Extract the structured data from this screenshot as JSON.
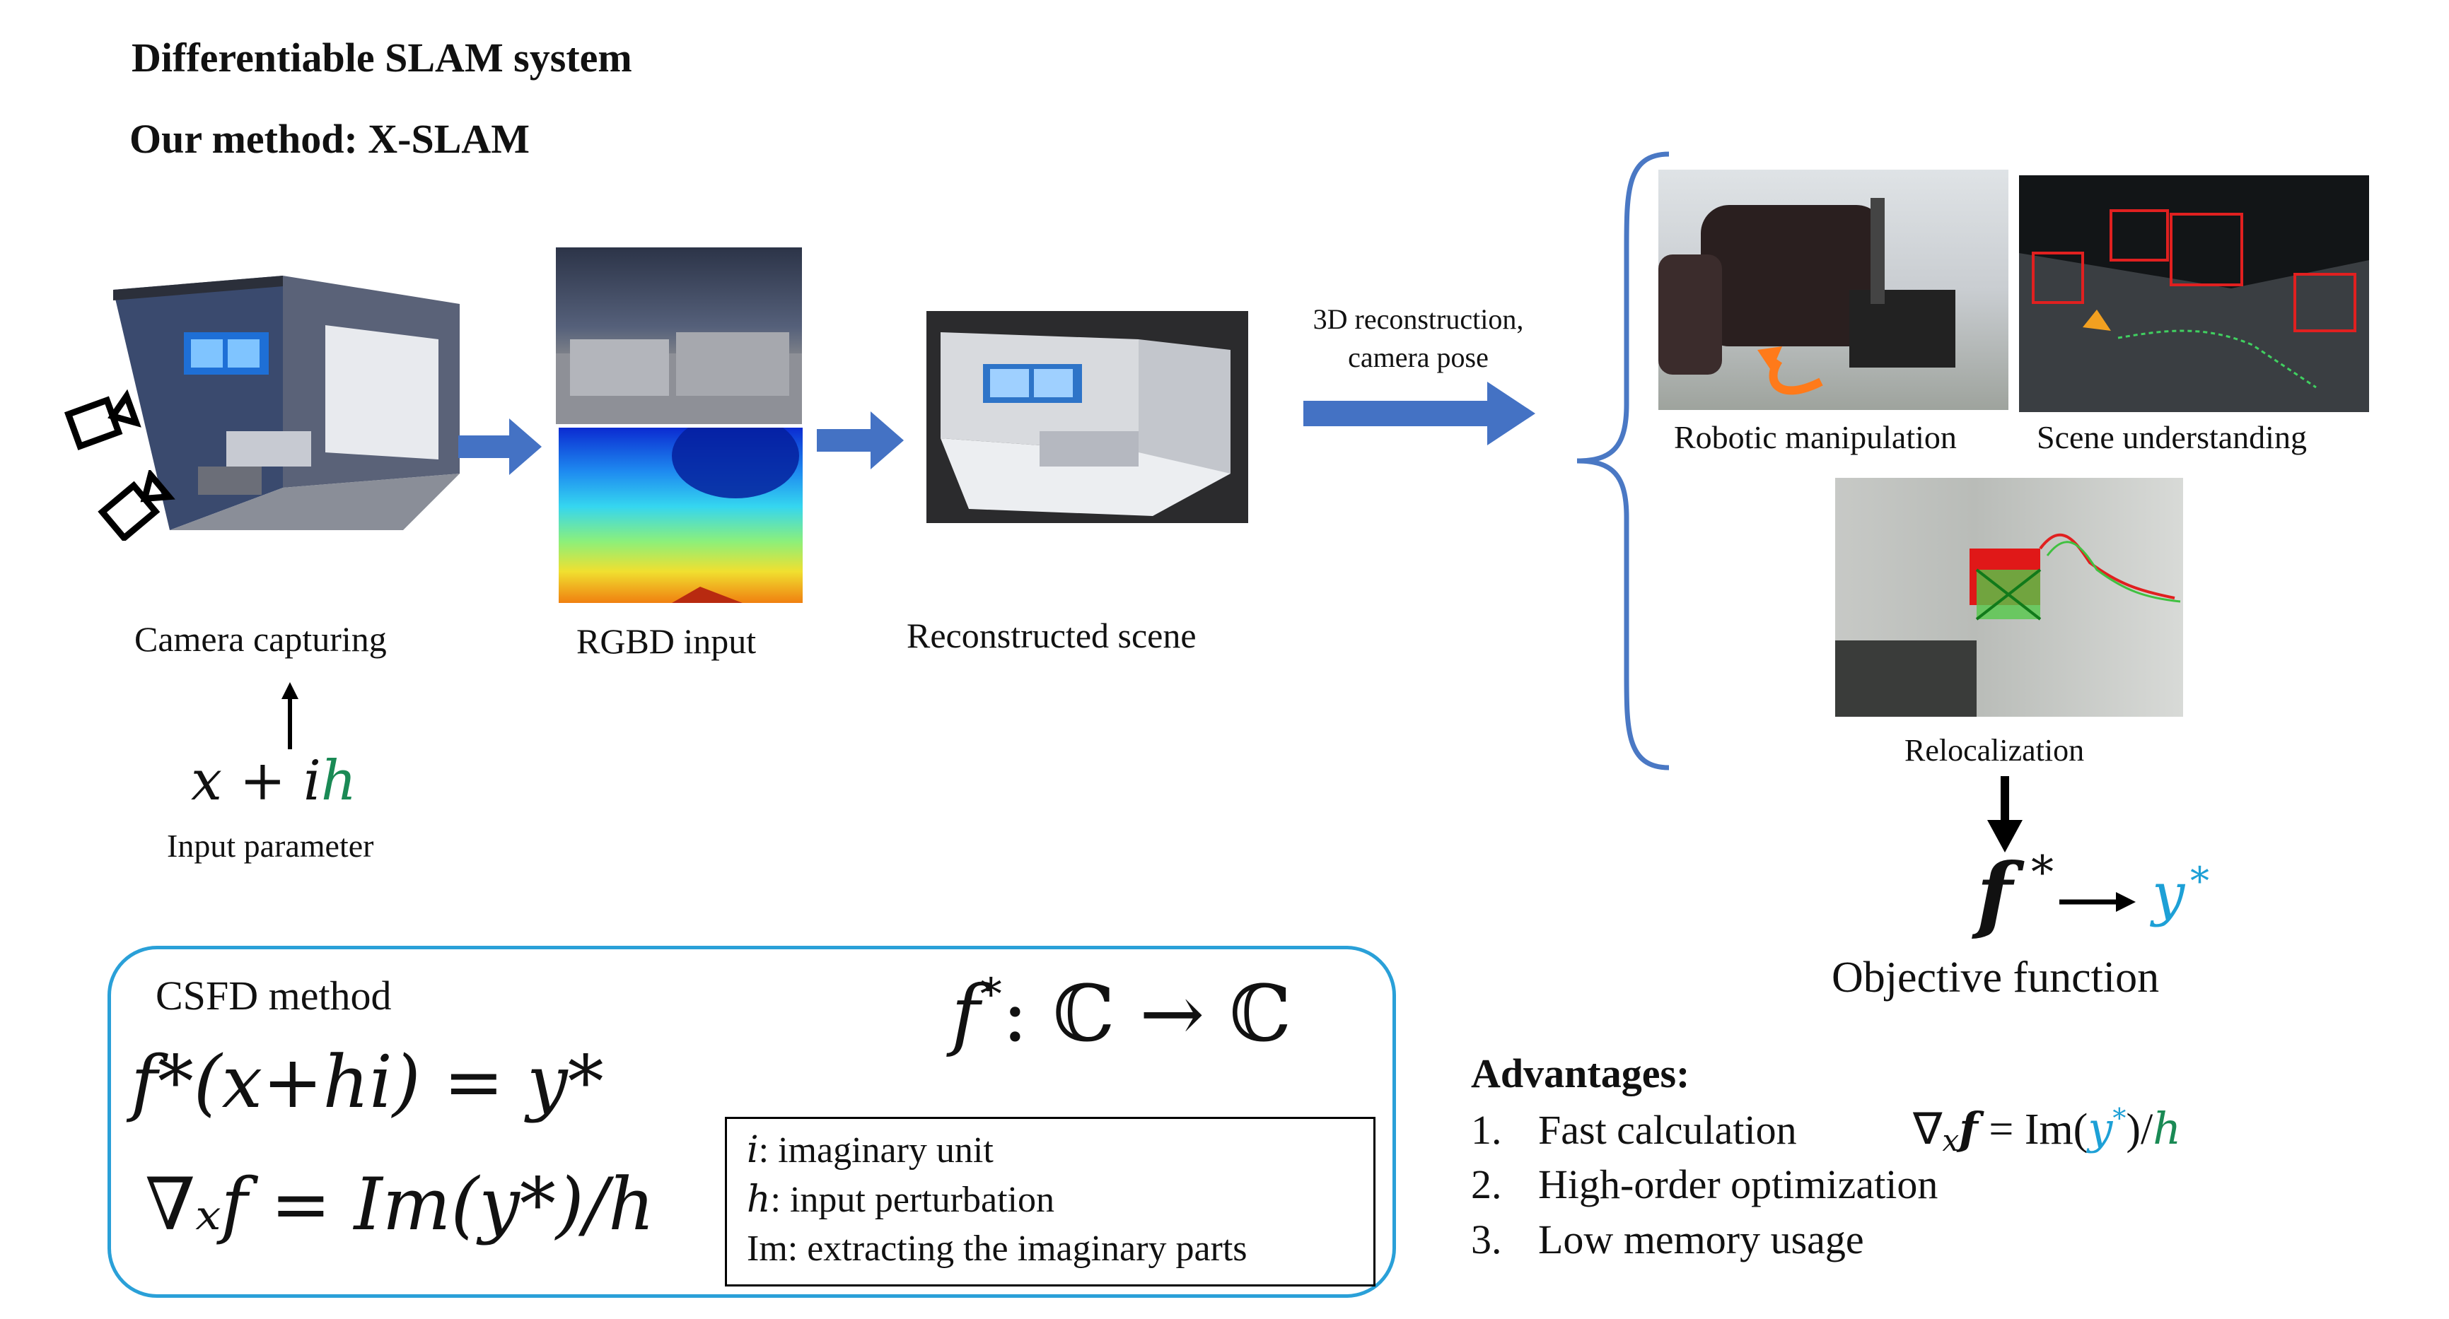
{
  "title": "Differentiable SLAM system",
  "subtitle": "Our method: X-SLAM",
  "pipeline": {
    "camera_label": "Camera capturing",
    "rgbd_label": "RGBD input",
    "reconstructed_label": "Reconstructed scene",
    "arrow_label_line1": "3D reconstruction,",
    "arrow_label_line2": "camera pose"
  },
  "input": {
    "expr_x": "x",
    "expr_plus": " + ",
    "expr_i": "i",
    "expr_h": "h",
    "label": "Input parameter"
  },
  "applications": {
    "robotic": "Robotic manipulation",
    "scene": "Scene understanding",
    "reloc": "Relocalization"
  },
  "objective": {
    "f": "f",
    "star": "*",
    "y": "y",
    "ystar": "*",
    "label": "Objective function"
  },
  "csfd": {
    "title": "CSFD method",
    "mapping_f": "f",
    "mapping_star": "*",
    "mapping_rest": ": ℂ → ℂ",
    "eq1": "f*(x+hi) = y*",
    "eq2": "∇ₓf = Im(y*)/h",
    "definitions": [
      {
        "term": "i",
        "desc": ":  imaginary unit"
      },
      {
        "term": "h",
        "desc": ": input perturbation"
      },
      {
        "term": "Im",
        "desc": ": extracting the imaginary parts"
      }
    ]
  },
  "advantages": {
    "heading": "Advantages:",
    "items": [
      {
        "num": "1.",
        "text": "Fast calculation"
      },
      {
        "num": "2.",
        "text": "High-order optimization"
      },
      {
        "num": "3.",
        "text": "Low memory usage"
      }
    ],
    "formula_nabla": "∇",
    "formula_x": "x",
    "formula_f": "f",
    "formula_eq": " = ",
    "formula_im": "Im(",
    "formula_y": "y",
    "formula_star": "*",
    "formula_close": ")/",
    "formula_h": "h"
  },
  "colors": {
    "arrow_blue": "#4472c4",
    "brace_blue": "#4a78c4",
    "csfd_border": "#2aa0d8",
    "green": "#1a8a55",
    "cyan": "#1da0d6"
  }
}
